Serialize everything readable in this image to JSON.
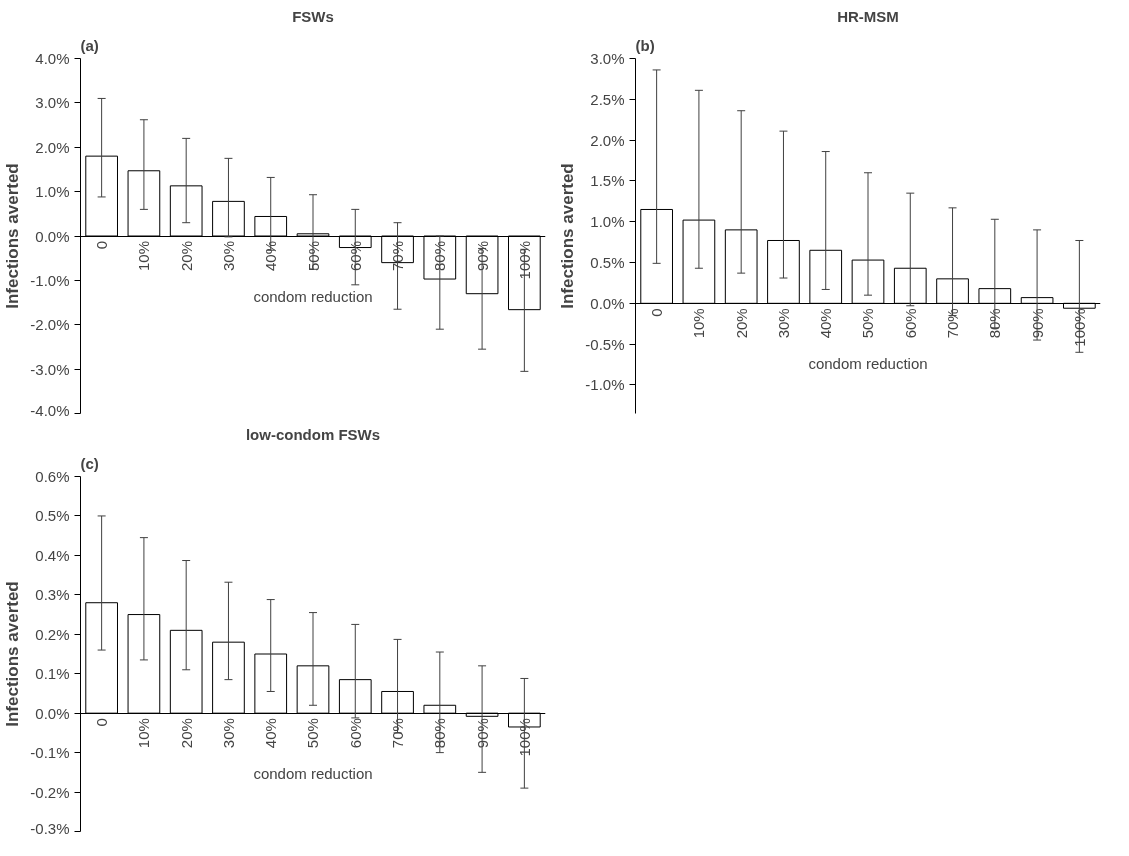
{
  "chart_data": [
    {
      "type": "bar",
      "title": "FSWs",
      "ylabel": "Infections averted",
      "xlabel": "condom reduction",
      "annotations": [
        "(a)"
      ],
      "categories": [
        "0",
        "10%",
        "20%",
        "30%",
        "40%",
        "50%",
        "60%",
        "70%",
        "80%",
        "90%",
        "100%"
      ],
      "values": [
        1.8,
        1.47,
        1.13,
        0.78,
        0.44,
        0.05,
        -0.26,
        -0.6,
        -0.97,
        -1.3,
        -1.66
      ],
      "errors": [
        [
          0.88,
          3.1
        ],
        [
          0.6,
          2.62
        ],
        [
          0.3,
          2.2
        ],
        [
          -0.02,
          1.75
        ],
        [
          -0.32,
          1.32
        ],
        [
          -0.75,
          0.93
        ],
        [
          -1.1,
          0.6
        ],
        [
          -1.65,
          0.3
        ],
        [
          -2.1,
          0.0
        ],
        [
          -2.55,
          -0.28
        ],
        [
          -3.05,
          -0.3
        ]
      ],
      "color": "#ffffff",
      "ylim": [
        -4,
        4
      ],
      "yticks": [
        {
          "value": -4,
          "label": "-4.0%"
        },
        {
          "value": -3,
          "label": "-3.0%"
        },
        {
          "value": -2,
          "label": "-2.0%"
        },
        {
          "value": -1,
          "label": "-1.0%"
        },
        {
          "value": 0,
          "label": "0.0%"
        },
        {
          "value": 1,
          "label": "1.0%"
        },
        {
          "value": 2,
          "label": "2.0%"
        },
        {
          "value": 3,
          "label": "3.0%"
        },
        {
          "value": 4,
          "label": "4.0%"
        }
      ]
    },
    {
      "type": "bar",
      "title": "HR-MSM",
      "ylabel": "Infections averted",
      "xlabel": "condom reduction",
      "annotations": [
        "(b)"
      ],
      "categories": [
        "0",
        "10%",
        "20%",
        "30%",
        "40%",
        "50%",
        "60%",
        "70%",
        "80%",
        "90%",
        "100%"
      ],
      "values": [
        1.15,
        1.02,
        0.9,
        0.77,
        0.65,
        0.53,
        0.43,
        0.3,
        0.18,
        0.07,
        -0.06
      ],
      "errors": [
        [
          0.49,
          2.86
        ],
        [
          0.43,
          2.61
        ],
        [
          0.37,
          2.36
        ],
        [
          0.31,
          2.11
        ],
        [
          0.17,
          1.86
        ],
        [
          0.1,
          1.6
        ],
        [
          -0.03,
          1.35
        ],
        [
          -0.15,
          1.17
        ],
        [
          -0.3,
          1.03
        ],
        [
          -0.45,
          0.9
        ],
        [
          -0.6,
          0.77
        ]
      ],
      "color": "#ffffff",
      "ylim": [
        -1.35,
        3.0
      ],
      "yticks": [
        {
          "value": -1,
          "label": "-1.0%"
        },
        {
          "value": -0.5,
          "label": "-0.5%"
        },
        {
          "value": 0,
          "label": "0.0%"
        },
        {
          "value": 0.5,
          "label": "0.5%"
        },
        {
          "value": 1,
          "label": "1.0%"
        },
        {
          "value": 1.5,
          "label": "1.5%"
        },
        {
          "value": 2,
          "label": "2.0%"
        },
        {
          "value": 2.5,
          "label": "2.5%"
        },
        {
          "value": 3,
          "label": "3.0%"
        }
      ]
    },
    {
      "type": "bar",
      "title": "low-condom FSWs",
      "ylabel": "Infections averted",
      "xlabel": "condom reduction",
      "annotations": [
        "(c)"
      ],
      "categories": [
        "0",
        "10%",
        "20%",
        "30%",
        "40%",
        "50%",
        "60%",
        "70%",
        "80%",
        "90%",
        "100%"
      ],
      "values": [
        0.28,
        0.25,
        0.21,
        0.18,
        0.15,
        0.12,
        0.085,
        0.055,
        0.02,
        -0.008,
        -0.035
      ],
      "errors": [
        [
          0.16,
          0.5
        ],
        [
          0.135,
          0.445
        ],
        [
          0.11,
          0.387
        ],
        [
          0.085,
          0.332
        ],
        [
          0.055,
          0.288
        ],
        [
          0.02,
          0.255
        ],
        [
          -0.012,
          0.225
        ],
        [
          -0.05,
          0.187
        ],
        [
          -0.1,
          0.155
        ],
        [
          -0.15,
          0.12
        ],
        [
          -0.19,
          0.088
        ]
      ],
      "color": "#ffffff",
      "ylim": [
        -0.3,
        0.6
      ],
      "yticks": [
        {
          "value": -0.3,
          "label": "-0.3%"
        },
        {
          "value": -0.2,
          "label": "-0.2%"
        },
        {
          "value": -0.1,
          "label": "-0.1%"
        },
        {
          "value": 0,
          "label": "0.0%"
        },
        {
          "value": 0.1,
          "label": "0.1%"
        },
        {
          "value": 0.2,
          "label": "0.2%"
        },
        {
          "value": 0.3,
          "label": "0.3%"
        },
        {
          "value": 0.4,
          "label": "0.4%"
        },
        {
          "value": 0.5,
          "label": "0.5%"
        },
        {
          "value": 0.6,
          "label": "0.6%"
        }
      ]
    }
  ]
}
